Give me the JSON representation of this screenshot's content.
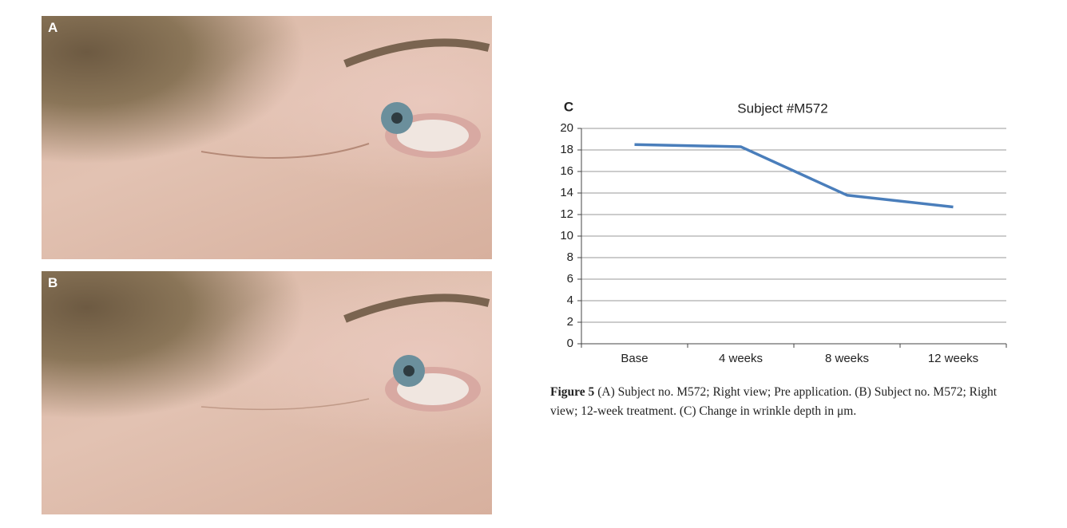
{
  "panels": [
    {
      "label": "A"
    },
    {
      "label": "B"
    }
  ],
  "chart_data": {
    "type": "line",
    "panel_label": "C",
    "title": "Subject #M572",
    "categories": [
      "Base",
      "4 weeks",
      "8 weeks",
      "12 weeks"
    ],
    "series": [
      {
        "color": "#4a7ebb",
        "values": [
          18.5,
          18.3,
          13.8,
          12.7
        ]
      }
    ],
    "ylim": [
      0,
      20
    ],
    "yticks": [
      0,
      2,
      4,
      6,
      8,
      10,
      12,
      14,
      16,
      18,
      20
    ],
    "grid": true
  },
  "caption": {
    "label": "Figure 5",
    "text": "(A) Subject no. M572; Right view; Pre application. (B) Subject no. M572; Right view; 12-week treatment. (C) Change in wrinkle depth in μm."
  }
}
